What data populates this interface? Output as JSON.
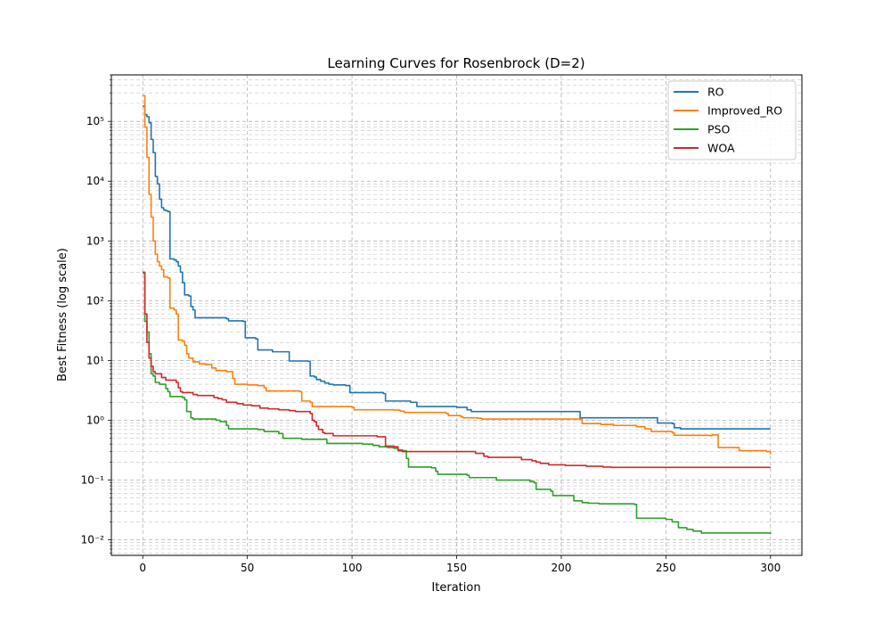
{
  "chart_data": {
    "type": "line",
    "title": "Learning Curves for Rosenbrock (D=2)",
    "xlabel": "Iteration",
    "ylabel": "Best Fitness (log scale)",
    "xlim": [
      -15,
      315
    ],
    "ylim": [
      0.0055,
      600000
    ],
    "yscale": "log",
    "xticks": [
      0,
      50,
      100,
      150,
      200,
      250,
      300
    ],
    "yticks": [
      {
        "value": 0.01,
        "label": "10⁻²"
      },
      {
        "value": 0.1,
        "label": "10⁻¹"
      },
      {
        "value": 1,
        "label": "10⁰"
      },
      {
        "value": 10,
        "label": "10¹"
      },
      {
        "value": 100,
        "label": "10²"
      },
      {
        "value": 1000,
        "label": "10³"
      },
      {
        "value": 10000,
        "label": "10⁴"
      },
      {
        "value": 100000,
        "label": "10⁵"
      }
    ],
    "grid": "both (major and minor, dashed)",
    "legend_position": "top-right",
    "series": [
      {
        "name": "RO",
        "color": "#1f77b4",
        "points": [
          [
            0,
            180000
          ],
          [
            1,
            130000
          ],
          [
            2,
            120000
          ],
          [
            3,
            95000
          ],
          [
            4,
            50000
          ],
          [
            5,
            30000
          ],
          [
            6,
            12000
          ],
          [
            7,
            9000
          ],
          [
            8,
            5000
          ],
          [
            9,
            3600
          ],
          [
            10,
            3300
          ],
          [
            11,
            3200
          ],
          [
            12,
            3100
          ],
          [
            13,
            500
          ],
          [
            15,
            480
          ],
          [
            16,
            450
          ],
          [
            17,
            380
          ],
          [
            18,
            300
          ],
          [
            19,
            200
          ],
          [
            20,
            125
          ],
          [
            22,
            120
          ],
          [
            23,
            80
          ],
          [
            24,
            70
          ],
          [
            25,
            52
          ],
          [
            40,
            50
          ],
          [
            41,
            46
          ],
          [
            48,
            45
          ],
          [
            49,
            24
          ],
          [
            54,
            23
          ],
          [
            55,
            15
          ],
          [
            61,
            15
          ],
          [
            62,
            14
          ],
          [
            69,
            14
          ],
          [
            70,
            9.8
          ],
          [
            79,
            9.7
          ],
          [
            80,
            5.5
          ],
          [
            82,
            5.3
          ],
          [
            83,
            4.8
          ],
          [
            85,
            4.5
          ],
          [
            87,
            4.2
          ],
          [
            89,
            4.0
          ],
          [
            91,
            3.9
          ],
          [
            97,
            3.8
          ],
          [
            99,
            2.9
          ],
          [
            110,
            2.9
          ],
          [
            115,
            2.8
          ],
          [
            116,
            2.1
          ],
          [
            128,
            2.0
          ],
          [
            131,
            1.7
          ],
          [
            150,
            1.65
          ],
          [
            155,
            1.5
          ],
          [
            157,
            1.4
          ],
          [
            208,
            1.4
          ],
          [
            209,
            1.1
          ],
          [
            245,
            1.1
          ],
          [
            246,
            0.9
          ],
          [
            253,
            0.88
          ],
          [
            254,
            0.75
          ],
          [
            257,
            0.72
          ],
          [
            300,
            0.72
          ]
        ]
      },
      {
        "name": "Improved_RO",
        "color": "#ff7f0e",
        "points": [
          [
            0,
            270000
          ],
          [
            1,
            80000
          ],
          [
            2,
            25000
          ],
          [
            3,
            6000
          ],
          [
            4,
            2500
          ],
          [
            5,
            1000
          ],
          [
            6,
            600
          ],
          [
            7,
            450
          ],
          [
            8,
            380
          ],
          [
            9,
            330
          ],
          [
            10,
            250
          ],
          [
            12,
            240
          ],
          [
            13,
            75
          ],
          [
            15,
            70
          ],
          [
            16,
            60
          ],
          [
            17,
            22
          ],
          [
            19,
            21
          ],
          [
            20,
            18
          ],
          [
            21,
            13
          ],
          [
            22,
            11
          ],
          [
            24,
            9.5
          ],
          [
            27,
            8.8
          ],
          [
            30,
            8.6
          ],
          [
            33,
            7.5
          ],
          [
            35,
            6.8
          ],
          [
            40,
            6.5
          ],
          [
            43,
            5.0
          ],
          [
            44,
            4.0
          ],
          [
            50,
            3.9
          ],
          [
            55,
            3.8
          ],
          [
            58,
            3.5
          ],
          [
            59,
            3.1
          ],
          [
            75,
            3.0
          ],
          [
            76,
            2.1
          ],
          [
            80,
            2.0
          ],
          [
            81,
            1.7
          ],
          [
            100,
            1.65
          ],
          [
            101,
            1.5
          ],
          [
            120,
            1.48
          ],
          [
            123,
            1.42
          ],
          [
            125,
            1.35
          ],
          [
            145,
            1.3
          ],
          [
            146,
            1.2
          ],
          [
            152,
            1.15
          ],
          [
            153,
            1.1
          ],
          [
            160,
            1.08
          ],
          [
            162,
            1.05
          ],
          [
            209,
            1.05
          ],
          [
            210,
            0.88
          ],
          [
            219,
            0.85
          ],
          [
            225,
            0.82
          ],
          [
            236,
            0.78
          ],
          [
            240,
            0.72
          ],
          [
            243,
            0.65
          ],
          [
            253,
            0.62
          ],
          [
            254,
            0.56
          ],
          [
            271,
            0.55
          ],
          [
            272,
            0.57
          ],
          [
            275,
            0.35
          ],
          [
            283,
            0.35
          ],
          [
            285,
            0.31
          ],
          [
            298,
            0.3
          ],
          [
            300,
            0.27
          ]
        ]
      },
      {
        "name": "PSO",
        "color": "#2ca02c",
        "points": [
          [
            0,
            300
          ],
          [
            1,
            45
          ],
          [
            2,
            30
          ],
          [
            3,
            13
          ],
          [
            4,
            6.0
          ],
          [
            5,
            5.5
          ],
          [
            6,
            4.3
          ],
          [
            8,
            4.0
          ],
          [
            10,
            4.0
          ],
          [
            11,
            3.4
          ],
          [
            12,
            3.0
          ],
          [
            13,
            2.5
          ],
          [
            19,
            2.4
          ],
          [
            20,
            2.2
          ],
          [
            21,
            1.4
          ],
          [
            23,
            1.1
          ],
          [
            24,
            1.05
          ],
          [
            35,
            1.0
          ],
          [
            37,
            0.95
          ],
          [
            40,
            0.82
          ],
          [
            41,
            0.72
          ],
          [
            55,
            0.7
          ],
          [
            58,
            0.65
          ],
          [
            65,
            0.6
          ],
          [
            67,
            0.5
          ],
          [
            75,
            0.5
          ],
          [
            76,
            0.48
          ],
          [
            87,
            0.48
          ],
          [
            88,
            0.41
          ],
          [
            105,
            0.4
          ],
          [
            110,
            0.38
          ],
          [
            113,
            0.36
          ],
          [
            117,
            0.35
          ],
          [
            120,
            0.34
          ],
          [
            122,
            0.32
          ],
          [
            124,
            0.31
          ],
          [
            126,
            0.23
          ],
          [
            127,
            0.165
          ],
          [
            138,
            0.16
          ],
          [
            140,
            0.14
          ],
          [
            141,
            0.125
          ],
          [
            155,
            0.12
          ],
          [
            156,
            0.11
          ],
          [
            168,
            0.11
          ],
          [
            169,
            0.1
          ],
          [
            185,
            0.095
          ],
          [
            187,
            0.09
          ],
          [
            188,
            0.07
          ],
          [
            195,
            0.065
          ],
          [
            196,
            0.055
          ],
          [
            205,
            0.055
          ],
          [
            206,
            0.045
          ],
          [
            210,
            0.042
          ],
          [
            213,
            0.041
          ],
          [
            218,
            0.04
          ],
          [
            235,
            0.039
          ],
          [
            236,
            0.023
          ],
          [
            250,
            0.022
          ],
          [
            253,
            0.02
          ],
          [
            256,
            0.016
          ],
          [
            260,
            0.015
          ],
          [
            263,
            0.014
          ],
          [
            267,
            0.013
          ],
          [
            300,
            0.0125
          ]
        ]
      },
      {
        "name": "WOA",
        "color": "#d62728",
        "points": [
          [
            0,
            290
          ],
          [
            1,
            60
          ],
          [
            2,
            20
          ],
          [
            3,
            11
          ],
          [
            4,
            8.0
          ],
          [
            5,
            6.5
          ],
          [
            6,
            6.0
          ],
          [
            9,
            5.2
          ],
          [
            11,
            4.7
          ],
          [
            16,
            4.3
          ],
          [
            17,
            3.5
          ],
          [
            18,
            3.0
          ],
          [
            19,
            2.9
          ],
          [
            24,
            2.7
          ],
          [
            26,
            2.6
          ],
          [
            34,
            2.4
          ],
          [
            36,
            2.3
          ],
          [
            38,
            2.2
          ],
          [
            40,
            2.0
          ],
          [
            45,
            1.9
          ],
          [
            48,
            1.8
          ],
          [
            52,
            1.75
          ],
          [
            56,
            1.6
          ],
          [
            60,
            1.55
          ],
          [
            65,
            1.5
          ],
          [
            70,
            1.45
          ],
          [
            73,
            1.4
          ],
          [
            80,
            1.3
          ],
          [
            81,
            1.0
          ],
          [
            82,
            0.95
          ],
          [
            83,
            0.8
          ],
          [
            84,
            0.7
          ],
          [
            86,
            0.62
          ],
          [
            87,
            0.6
          ],
          [
            90,
            0.6
          ],
          [
            91,
            0.55
          ],
          [
            110,
            0.55
          ],
          [
            112,
            0.53
          ],
          [
            115,
            0.53
          ],
          [
            116,
            0.37
          ],
          [
            120,
            0.36
          ],
          [
            122,
            0.31
          ],
          [
            124,
            0.3
          ],
          [
            158,
            0.3
          ],
          [
            159,
            0.28
          ],
          [
            163,
            0.25
          ],
          [
            165,
            0.24
          ],
          [
            178,
            0.24
          ],
          [
            181,
            0.22
          ],
          [
            186,
            0.21
          ],
          [
            188,
            0.2
          ],
          [
            190,
            0.19
          ],
          [
            194,
            0.18
          ],
          [
            200,
            0.18
          ],
          [
            202,
            0.175
          ],
          [
            210,
            0.175
          ],
          [
            212,
            0.17
          ],
          [
            220,
            0.165
          ],
          [
            224,
            0.163
          ],
          [
            300,
            0.163
          ]
        ]
      }
    ]
  }
}
